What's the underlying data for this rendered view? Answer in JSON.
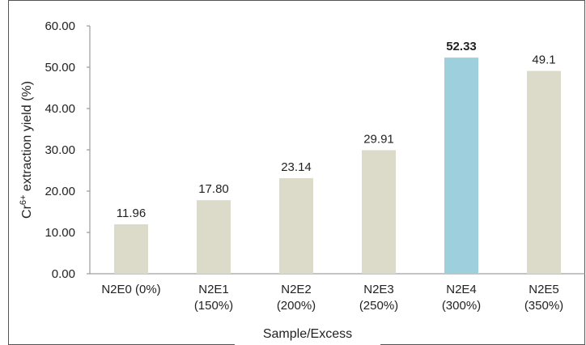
{
  "chart_data": {
    "type": "bar",
    "ylabel_parts": [
      "Cr",
      "6+",
      " extraction  yield  (%)"
    ],
    "xlabel": "Sample/Excess",
    "categories": [
      "N2E0 (0%)",
      "N2E1\n(150%)",
      "N2E2\n(200%)",
      "N2E3\n(250%)",
      "N2E4\n(300%)",
      "N2E5\n(350%)"
    ],
    "values": [
      11.96,
      17.8,
      23.14,
      29.91,
      52.33,
      49.1
    ],
    "value_labels": [
      "11.96",
      "17.80",
      "23.14",
      "29.91",
      "52.33",
      "49.1"
    ],
    "colors": [
      "#dcdac8",
      "#dcdac8",
      "#dcdac8",
      "#dcdac8",
      "#9ecfdc",
      "#dcdac8"
    ],
    "bold_labels": [
      false,
      false,
      false,
      false,
      true,
      false
    ],
    "ylim": [
      0,
      60
    ],
    "yticks": [
      {
        "value": 0,
        "label": "0.00"
      },
      {
        "value": 10,
        "label": "10.00"
      },
      {
        "value": 20,
        "label": "20.00"
      },
      {
        "value": 30,
        "label": "30.00"
      },
      {
        "value": 40,
        "label": "40.00"
      },
      {
        "value": 50,
        "label": "50.00"
      },
      {
        "value": 60,
        "label": "60.00"
      }
    ],
    "grid": false
  }
}
